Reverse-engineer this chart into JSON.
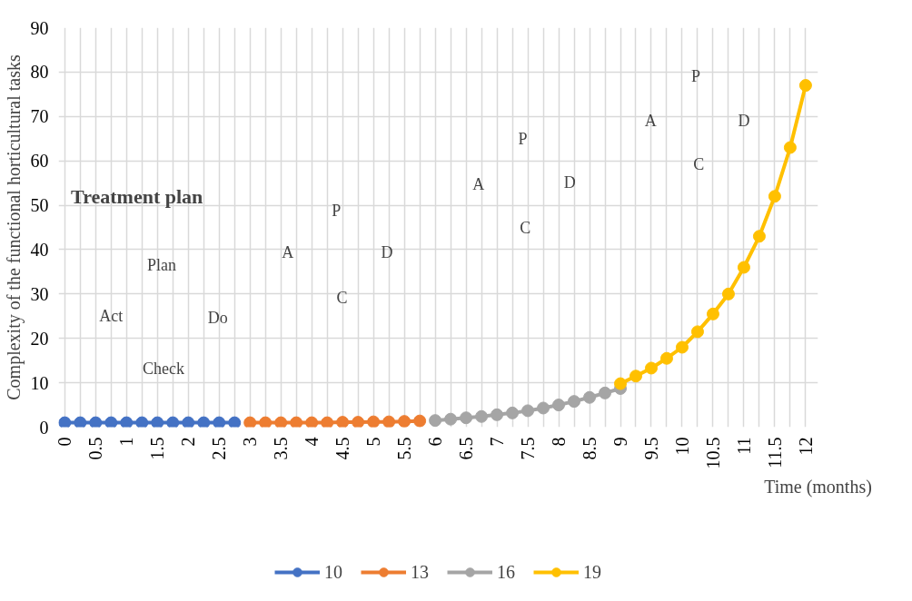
{
  "chart_data": {
    "type": "line",
    "xlabel": "Time (months)",
    "ylabel": "Complexity of the functional horticultural tasks",
    "xlim": [
      -0.1,
      12.2
    ],
    "ylim": [
      0,
      90
    ],
    "xticks": [
      0,
      {
        "value": 0.25,
        "label": null
      },
      0.5,
      {
        "value": 0.75,
        "label": null
      },
      1,
      {
        "value": 1.25,
        "label": null
      },
      1.5,
      {
        "value": 1.75,
        "label": null
      },
      2,
      {
        "value": 2.25,
        "label": null
      },
      2.5,
      {
        "value": 2.75,
        "label": null
      },
      3,
      {
        "value": 3.25,
        "label": null
      },
      3.5,
      {
        "value": 3.75,
        "label": null
      },
      4,
      {
        "value": 4.25,
        "label": null
      },
      4.5,
      {
        "value": 4.75,
        "label": null
      },
      5,
      {
        "value": 5.25,
        "label": null
      },
      5.5,
      {
        "value": 5.75,
        "label": null
      },
      6,
      {
        "value": 6.25,
        "label": null
      },
      6.5,
      {
        "value": 6.75,
        "label": null
      },
      7,
      {
        "value": 7.25,
        "label": null
      },
      7.5,
      {
        "value": 7.75,
        "label": null
      },
      8,
      {
        "value": 8.25,
        "label": null
      },
      8.5,
      {
        "value": 8.75,
        "label": null
      },
      9,
      {
        "value": 9.25,
        "label": null
      },
      9.5,
      {
        "value": 9.75,
        "label": null
      },
      10,
      {
        "value": 10.25,
        "label": null
      },
      10.5,
      {
        "value": 10.75,
        "label": null
      },
      11,
      {
        "value": 11.25,
        "label": null
      },
      11.5,
      {
        "value": 11.75,
        "label": null
      },
      12
    ],
    "yticks": [
      0,
      10,
      20,
      30,
      40,
      50,
      60,
      70,
      80,
      90
    ],
    "grid": true,
    "legend": "bottom",
    "marker": "circle",
    "line_style": "solid",
    "series": [
      {
        "name": "10",
        "color": "#4472c4",
        "x": [
          0,
          0.25,
          0.5,
          0.75,
          1,
          1.25,
          1.5,
          1.75,
          2,
          2.25,
          2.5,
          2.75
        ],
        "values": [
          1,
          1,
          1,
          1,
          1,
          1,
          1,
          1,
          1,
          1,
          1,
          1
        ]
      },
      {
        "name": "13",
        "color": "#ed7d31",
        "x": [
          3,
          3.25,
          3.5,
          3.75,
          4,
          4.25,
          4.5,
          4.75,
          5,
          5.25,
          5.5,
          5.75
        ],
        "values": [
          1,
          1,
          1,
          1,
          1,
          1,
          1.1,
          1.1,
          1.2,
          1.2,
          1.3,
          1.4
        ]
      },
      {
        "name": "16",
        "color": "#a5a5a5",
        "x": [
          6,
          6.25,
          6.5,
          6.75,
          7,
          7.25,
          7.5,
          7.75,
          8,
          8.25,
          8.5,
          8.75,
          9
        ],
        "values": [
          1.5,
          1.8,
          2.1,
          2.4,
          2.8,
          3.2,
          3.7,
          4.3,
          5.0,
          5.8,
          6.7,
          7.7,
          8.7
        ]
      },
      {
        "name": "19",
        "color": "#ffc000",
        "x": [
          9,
          9.25,
          9.5,
          9.75,
          10,
          10.25,
          10.5,
          10.75,
          11,
          11.25,
          11.5,
          11.75,
          12
        ],
        "values": [
          9.8,
          11.5,
          13.3,
          15.5,
          18,
          21.5,
          25.5,
          30,
          36,
          43,
          52,
          63,
          77
        ]
      }
    ],
    "annotations": [
      "Treatment plan",
      "Plan",
      "Do",
      "Check",
      "Act",
      "P",
      "D",
      "C",
      "A",
      "P",
      "D",
      "C",
      "A",
      "P",
      "D",
      "C",
      "A"
    ]
  }
}
